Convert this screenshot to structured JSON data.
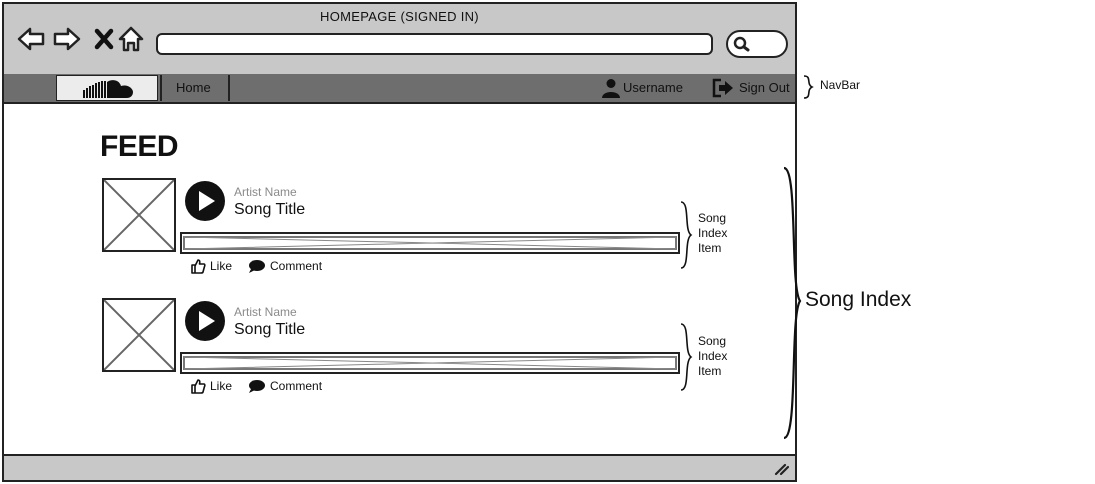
{
  "window": {
    "title": "HOMEPAGE (SIGNED IN)"
  },
  "toolbar": {
    "back_icon": "back-arrow-icon",
    "forward_icon": "forward-arrow-icon",
    "close_icon": "close-icon",
    "home_icon": "home-icon",
    "address_value": "",
    "search_icon": "search-icon"
  },
  "navbar": {
    "logo_icon": "cloud-logo-icon",
    "home_label": "Home",
    "username": "Username",
    "signout_label": "Sign Out"
  },
  "feed": {
    "title": "FEED",
    "items": [
      {
        "artist": "Artist Name",
        "song": "Song Title",
        "like_label": "Like",
        "comment_label": "Comment"
      },
      {
        "artist": "Artist Name",
        "song": "Song Title",
        "like_label": "Like",
        "comment_label": "Comment"
      }
    ]
  },
  "annotations": {
    "navbar": "NavBar",
    "song_index_item": [
      "Song",
      "Index",
      "Item"
    ],
    "song_index": "Song Index"
  },
  "colors": {
    "chrome": "#c8c8c8",
    "navbar": "#6e6e6e",
    "logo_tab": "#ececec",
    "artist_text": "#8a8a8a"
  }
}
